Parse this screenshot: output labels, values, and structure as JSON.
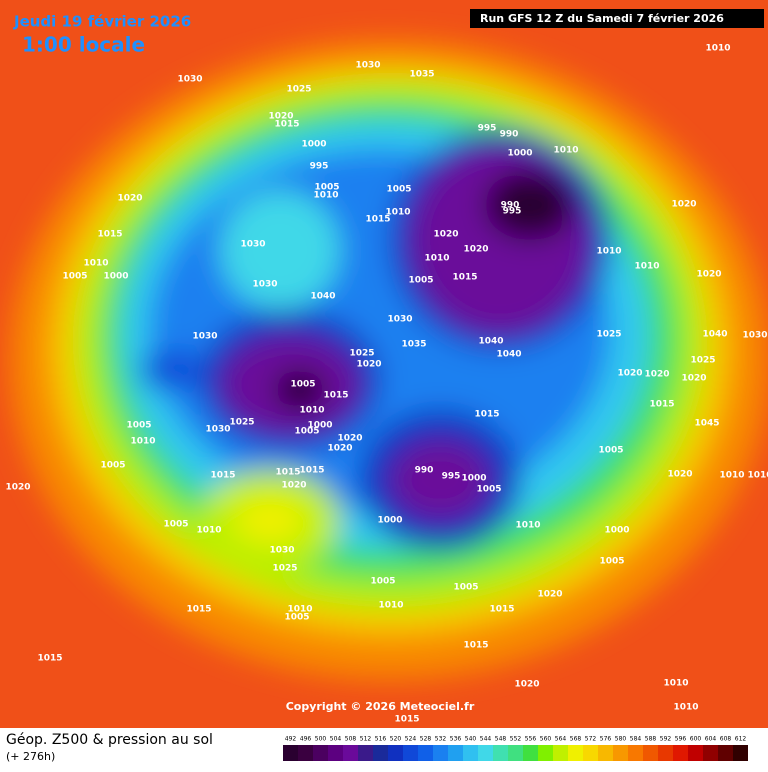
{
  "header": {
    "date": "Jeudi 19 février 2026",
    "time": "1:00 locale",
    "run": "Run GFS 12 Z du Samedi 7 février 2026"
  },
  "copyright": "Copyright © 2026 Meteociel.fr",
  "footer": {
    "title": "Géop. Z500 & pression au sol",
    "lead": "(+ 276h)"
  },
  "colorbar": {
    "values": [
      492,
      496,
      500,
      504,
      508,
      512,
      516,
      520,
      524,
      528,
      532,
      536,
      540,
      544,
      548,
      552,
      556,
      560,
      564,
      568,
      572,
      576,
      580,
      584,
      588,
      592,
      596,
      600,
      604,
      608,
      612
    ],
    "colors": [
      "#2a0030",
      "#3a0040",
      "#4b0060",
      "#5c0080",
      "#6a0a9a",
      "#3a1a8a",
      "#1a2a9a",
      "#1030c0",
      "#1048d8",
      "#1060e8",
      "#1a80f0",
      "#20a0f0",
      "#30c0f0",
      "#40d8e8",
      "#40e0b0",
      "#40e080",
      "#40e040",
      "#80f000",
      "#c0f000",
      "#f0f000",
      "#f8d800",
      "#f8b800",
      "#f89800",
      "#f87800",
      "#f05800",
      "#e83800",
      "#e01800",
      "#c00000",
      "#900000",
      "#600000",
      "#300000"
    ]
  },
  "pressure_labels": [
    1030,
    1030,
    1035,
    1025,
    1020,
    1015,
    1000,
    995,
    1005,
    1010,
    1020,
    1015,
    1010,
    1005,
    1000,
    1030,
    1030,
    1040,
    1030,
    1005,
    1010,
    1015,
    1020,
    1010,
    1005,
    1015,
    1020,
    1030,
    1035,
    1040,
    1040,
    995,
    990,
    1000,
    1010,
    990,
    995,
    1010,
    1010,
    1020,
    1020,
    1025,
    1030,
    1010,
    1025,
    1020,
    1005,
    1015,
    1010,
    1000,
    1005,
    1025,
    1030,
    1005,
    1010,
    1005,
    1015,
    1015,
    1015,
    1020,
    1020,
    1020,
    1015,
    990,
    995,
    1000,
    1005,
    1000,
    1010,
    1000,
    1005,
    1005,
    1020,
    1005,
    1010,
    1030,
    1025,
    1015,
    1010,
    1005,
    1005,
    1010,
    1005,
    1015,
    1020,
    1015,
    1015,
    1020,
    1015,
    1010,
    1010,
    1020,
    1020,
    1020,
    1025,
    1015,
    1020,
    1010,
    1010,
    1040,
    1045
  ]
}
